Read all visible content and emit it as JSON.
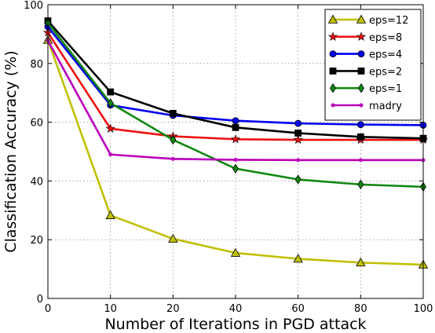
{
  "chart_data": {
    "type": "line",
    "xlabel": "Number of Iterations in PGD attack",
    "ylabel": "Classification Accuracy (%)",
    "x": [
      0,
      10,
      20,
      40,
      60,
      80,
      100
    ],
    "x_tick_labels": [
      "0",
      "10",
      "20",
      "40",
      "60",
      "80",
      "100"
    ],
    "y_ticks": [
      0,
      20,
      40,
      60,
      80,
      100
    ],
    "ylim": [
      0,
      100
    ],
    "grid": true,
    "legend_position": "top-right",
    "series": [
      {
        "name": "eps=12",
        "color": "#bfbf00",
        "marker": "triangle",
        "values": [
          88,
          28.3,
          20.3,
          15.5,
          13.5,
          12.2,
          11.5
        ]
      },
      {
        "name": "eps=8",
        "color": "#ee1111",
        "marker": "star",
        "values": [
          90.5,
          57.8,
          55.2,
          54.2,
          54,
          54,
          54
        ]
      },
      {
        "name": "eps=4",
        "color": "#0000ee",
        "marker": "circle",
        "values": [
          92.5,
          65.8,
          62.3,
          60.5,
          59.6,
          59.2,
          59
        ]
      },
      {
        "name": "eps=2",
        "color": "#000000",
        "marker": "square",
        "values": [
          94.5,
          70.3,
          63,
          58.2,
          56.3,
          55,
          54.5
        ]
      },
      {
        "name": "eps=1",
        "color": "#118811",
        "marker": "diamond",
        "values": [
          93.8,
          66.5,
          54,
          44.2,
          40.5,
          38.8,
          38
        ]
      },
      {
        "name": "madry",
        "color": "#bb00bb",
        "marker": "dot",
        "values": [
          87.8,
          49,
          47.5,
          47.2,
          47.1,
          47.1,
          47.1
        ]
      }
    ]
  }
}
